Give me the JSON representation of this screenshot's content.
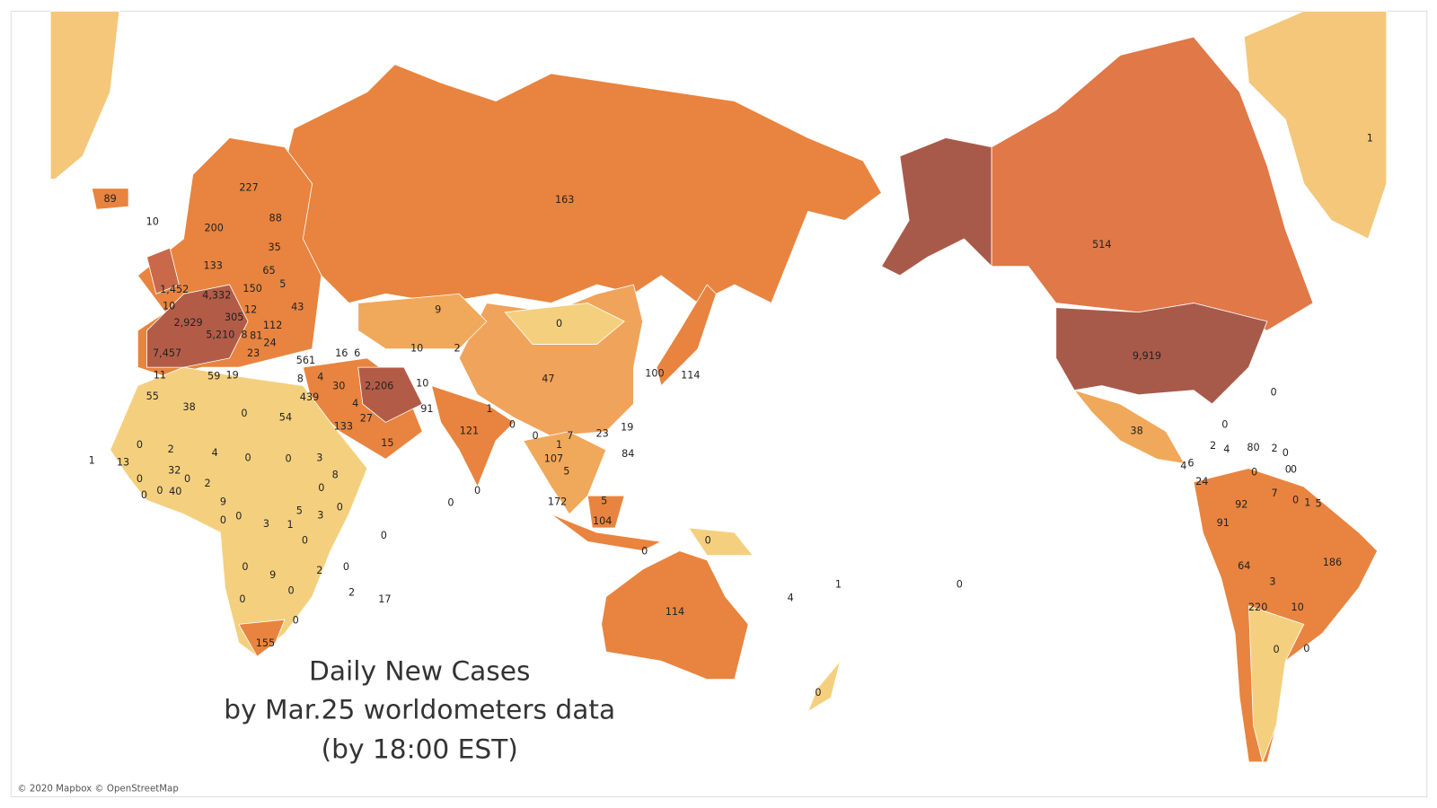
{
  "title": [
    "Daily New Cases",
    "by Mar.25 worldometers data",
    "(by 18:00 EST)"
  ],
  "attribution": "© 2020 Mapbox © OpenStreetMap",
  "labels": [
    89,
    10,
    227,
    200,
    88,
    35,
    133,
    65,
    5,
    {
      "value": 1452,
      "label": "1,452"
    },
    {
      "value": 4332,
      "label": "4,332"
    },
    150,
    10,
    12,
    43,
    {
      "value": 2929,
      "label": "2,929"
    },
    305,
    112,
    {
      "value": 5210,
      "label": "5,210"
    },
    8,
    81,
    24,
    23,
    16,
    6,
    {
      "value": 7457,
      "label": "7,457"
    },
    561,
    11,
    59,
    19,
    8,
    4,
    30,
    {
      "value": 2206,
      "label": "2,206"
    },
    10,
    55,
    439,
    4,
    91,
    38,
    0,
    54,
    27,
    133,
    15,
    9,
    10,
    2,
    0,
    163,
    47,
    1,
    121,
    0,
    0,
    7,
    23,
    19,
    100,
    114,
    84,
    1,
    107,
    5,
    172,
    5,
    104,
    0,
    0,
    0,
    0,
    114,
    4,
    1,
    0,
    0,
    0,
    2,
    4,
    0,
    0,
    3,
    1,
    13,
    32,
    0,
    2,
    0,
    8,
    0,
    0,
    0,
    40,
    9,
    0,
    0,
    0,
    5,
    3,
    3,
    1,
    0,
    0,
    0,
    9,
    2,
    0,
    0,
    2,
    17,
    0,
    0,
    155,
    1,
    514,
    {
      "value": 9919,
      "label": "9,919"
    },
    0,
    38,
    0,
    2,
    4,
    80,
    2,
    0,
    4,
    6,
    0,
    0,
    0,
    24,
    92,
    7,
    0,
    1,
    5,
    91,
    186,
    64,
    3,
    220,
    10,
    0,
    0
  ]
}
